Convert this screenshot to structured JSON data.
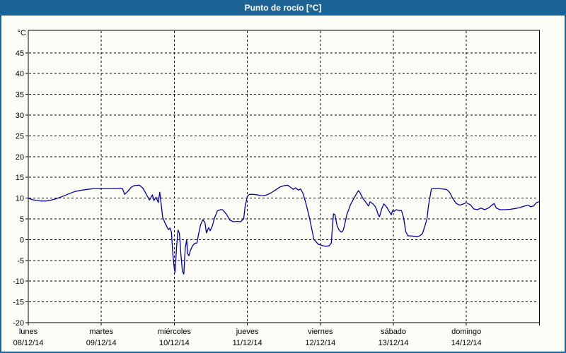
{
  "window": {
    "title": "Punto de rocío [°C]"
  },
  "colors": {
    "titlebar_bg": "#1E6396",
    "title_text": "#FFFFFF",
    "frame_border": "#1E6396",
    "page_bg": "#FCFDF6",
    "line": "#0000A0",
    "grid": "#000000",
    "text": "#000000"
  },
  "chart_data": {
    "type": "line",
    "title": "Punto de rocío [°C]",
    "ylabel": "°C",
    "xlabel": "",
    "grid": true,
    "legend_position": "none",
    "ylim": [
      -20,
      50.4
    ],
    "y_ticks": [
      45,
      40,
      35,
      30,
      25,
      20,
      15,
      10,
      5,
      0,
      -5,
      -10,
      -15,
      -20
    ],
    "x_axis": {
      "days": [
        {
          "name": "lunes",
          "date": "08/12/14"
        },
        {
          "name": "martes",
          "date": "09/12/14"
        },
        {
          "name": "miércoles",
          "date": "10/12/14"
        },
        {
          "name": "jueves",
          "date": "11/12/14"
        },
        {
          "name": "viernes",
          "date": "12/12/14"
        },
        {
          "name": "sábado",
          "date": "13/12/14"
        },
        {
          "name": "domingo",
          "date": "14/12/14"
        }
      ]
    },
    "series": [
      {
        "name": "Punto de rocío",
        "color": "#0000A0",
        "points": [
          [
            0.0,
            10.0
          ],
          [
            0.06,
            9.6
          ],
          [
            0.12,
            9.4
          ],
          [
            0.17,
            9.3
          ],
          [
            0.24,
            9.3
          ],
          [
            0.31,
            9.5
          ],
          [
            0.39,
            9.9
          ],
          [
            0.47,
            10.4
          ],
          [
            0.55,
            11.0
          ],
          [
            0.64,
            11.6
          ],
          [
            0.73,
            11.9
          ],
          [
            0.81,
            12.1
          ],
          [
            0.9,
            12.3
          ],
          [
            1.0,
            12.3
          ],
          [
            1.1,
            12.3
          ],
          [
            1.19,
            12.3
          ],
          [
            1.26,
            12.4
          ],
          [
            1.29,
            12.3
          ],
          [
            1.32,
            10.9
          ],
          [
            1.36,
            11.6
          ],
          [
            1.41,
            12.6
          ],
          [
            1.45,
            13.0
          ],
          [
            1.52,
            13.1
          ],
          [
            1.57,
            12.4
          ],
          [
            1.62,
            10.8
          ],
          [
            1.66,
            9.5
          ],
          [
            1.7,
            10.8
          ],
          [
            1.72,
            9.4
          ],
          [
            1.75,
            10.2
          ],
          [
            1.78,
            8.9
          ],
          [
            1.8,
            11.4
          ],
          [
            1.82,
            8.5
          ],
          [
            1.84,
            5.4
          ],
          [
            1.87,
            4.1
          ],
          [
            1.9,
            3.0
          ],
          [
            1.92,
            2.4
          ],
          [
            1.94,
            2.8
          ],
          [
            1.96,
            1.8
          ],
          [
            1.98,
            -3.5
          ],
          [
            2.0,
            -7.0
          ],
          [
            2.01,
            -7.9
          ],
          [
            2.03,
            -1.9
          ],
          [
            2.05,
            2.3
          ],
          [
            2.07,
            1.5
          ],
          [
            2.09,
            -3.6
          ],
          [
            2.11,
            -7.6
          ],
          [
            2.13,
            -8.3
          ],
          [
            2.15,
            -1.9
          ],
          [
            2.17,
            0.0
          ],
          [
            2.18,
            -3.3
          ],
          [
            2.2,
            -3.9
          ],
          [
            2.22,
            -2.6
          ],
          [
            2.25,
            -1.5
          ],
          [
            2.28,
            -0.9
          ],
          [
            2.31,
            -0.8
          ],
          [
            2.33,
            1.2
          ],
          [
            2.36,
            3.6
          ],
          [
            2.39,
            4.8
          ],
          [
            2.42,
            4.1
          ],
          [
            2.44,
            1.6
          ],
          [
            2.47,
            2.9
          ],
          [
            2.49,
            2.1
          ],
          [
            2.52,
            3.3
          ],
          [
            2.55,
            5.2
          ],
          [
            2.59,
            6.9
          ],
          [
            2.63,
            7.2
          ],
          [
            2.66,
            7.2
          ],
          [
            2.71,
            6.2
          ],
          [
            2.76,
            4.7
          ],
          [
            2.81,
            4.3
          ],
          [
            2.86,
            4.4
          ],
          [
            2.91,
            4.3
          ],
          [
            2.93,
            4.7
          ],
          [
            2.95,
            5.0
          ],
          [
            2.97,
            8.0
          ],
          [
            3.0,
            10.4
          ],
          [
            3.03,
            10.9
          ],
          [
            3.08,
            10.9
          ],
          [
            3.13,
            10.8
          ],
          [
            3.18,
            10.6
          ],
          [
            3.23,
            10.6
          ],
          [
            3.27,
            10.8
          ],
          [
            3.32,
            11.2
          ],
          [
            3.39,
            12.0
          ],
          [
            3.45,
            12.7
          ],
          [
            3.51,
            13.0
          ],
          [
            3.55,
            13.1
          ],
          [
            3.6,
            12.5
          ],
          [
            3.63,
            12.1
          ],
          [
            3.66,
            12.5
          ],
          [
            3.7,
            11.9
          ],
          [
            3.73,
            12.2
          ],
          [
            3.76,
            11.2
          ],
          [
            3.79,
            9.5
          ],
          [
            3.82,
            7.5
          ],
          [
            3.85,
            5.3
          ],
          [
            3.88,
            2.8
          ],
          [
            3.91,
            0.1
          ],
          [
            3.94,
            -0.5
          ],
          [
            3.97,
            -1.1
          ],
          [
            4.02,
            -1.4
          ],
          [
            4.07,
            -1.6
          ],
          [
            4.12,
            -1.5
          ],
          [
            4.15,
            -0.8
          ],
          [
            4.165,
            3.0
          ],
          [
            4.18,
            6.2
          ],
          [
            4.2,
            6.0
          ],
          [
            4.23,
            3.3
          ],
          [
            4.26,
            2.2
          ],
          [
            4.29,
            1.8
          ],
          [
            4.31,
            2.1
          ],
          [
            4.33,
            3.4
          ],
          [
            4.36,
            5.9
          ],
          [
            4.41,
            8.3
          ],
          [
            4.46,
            10.0
          ],
          [
            4.52,
            11.8
          ],
          [
            4.54,
            11.4
          ],
          [
            4.58,
            10.0
          ],
          [
            4.63,
            8.8
          ],
          [
            4.66,
            8.1
          ],
          [
            4.68,
            9.1
          ],
          [
            4.72,
            8.6
          ],
          [
            4.75,
            8.0
          ],
          [
            4.77,
            7.2
          ],
          [
            4.79,
            6.1
          ],
          [
            4.81,
            5.5
          ],
          [
            4.84,
            7.4
          ],
          [
            4.87,
            8.6
          ],
          [
            4.91,
            7.8
          ],
          [
            4.94,
            6.9
          ],
          [
            4.97,
            6.0
          ],
          [
            4.99,
            7.0
          ],
          [
            5.01,
            6.8
          ],
          [
            5.04,
            7.2
          ],
          [
            5.08,
            7.0
          ],
          [
            5.11,
            7.0
          ],
          [
            5.14,
            5.3
          ],
          [
            5.17,
            1.9
          ],
          [
            5.2,
            0.9
          ],
          [
            5.24,
            0.9
          ],
          [
            5.28,
            0.8
          ],
          [
            5.32,
            0.7
          ],
          [
            5.36,
            0.9
          ],
          [
            5.4,
            1.5
          ],
          [
            5.43,
            3.2
          ],
          [
            5.46,
            5.0
          ],
          [
            5.48,
            8.0
          ],
          [
            5.52,
            12.2
          ],
          [
            5.57,
            12.3
          ],
          [
            5.62,
            12.3
          ],
          [
            5.67,
            12.2
          ],
          [
            5.72,
            12.1
          ],
          [
            5.75,
            11.8
          ],
          [
            5.78,
            11.1
          ],
          [
            5.81,
            10.0
          ],
          [
            5.86,
            8.7
          ],
          [
            5.91,
            8.3
          ],
          [
            5.96,
            8.6
          ],
          [
            6.0,
            8.9
          ],
          [
            6.06,
            8.3
          ],
          [
            6.1,
            7.4
          ],
          [
            6.15,
            7.2
          ],
          [
            6.2,
            7.6
          ],
          [
            6.25,
            7.2
          ],
          [
            6.3,
            7.6
          ],
          [
            6.35,
            8.3
          ],
          [
            6.38,
            8.7
          ],
          [
            6.41,
            7.6
          ],
          [
            6.46,
            7.2
          ],
          [
            6.53,
            7.2
          ],
          [
            6.6,
            7.3
          ],
          [
            6.67,
            7.5
          ],
          [
            6.73,
            7.7
          ],
          [
            6.8,
            8.1
          ],
          [
            6.85,
            8.3
          ],
          [
            6.88,
            7.9
          ],
          [
            6.92,
            8.1
          ],
          [
            6.96,
            8.9
          ],
          [
            6.99,
            9.1
          ]
        ]
      }
    ]
  }
}
